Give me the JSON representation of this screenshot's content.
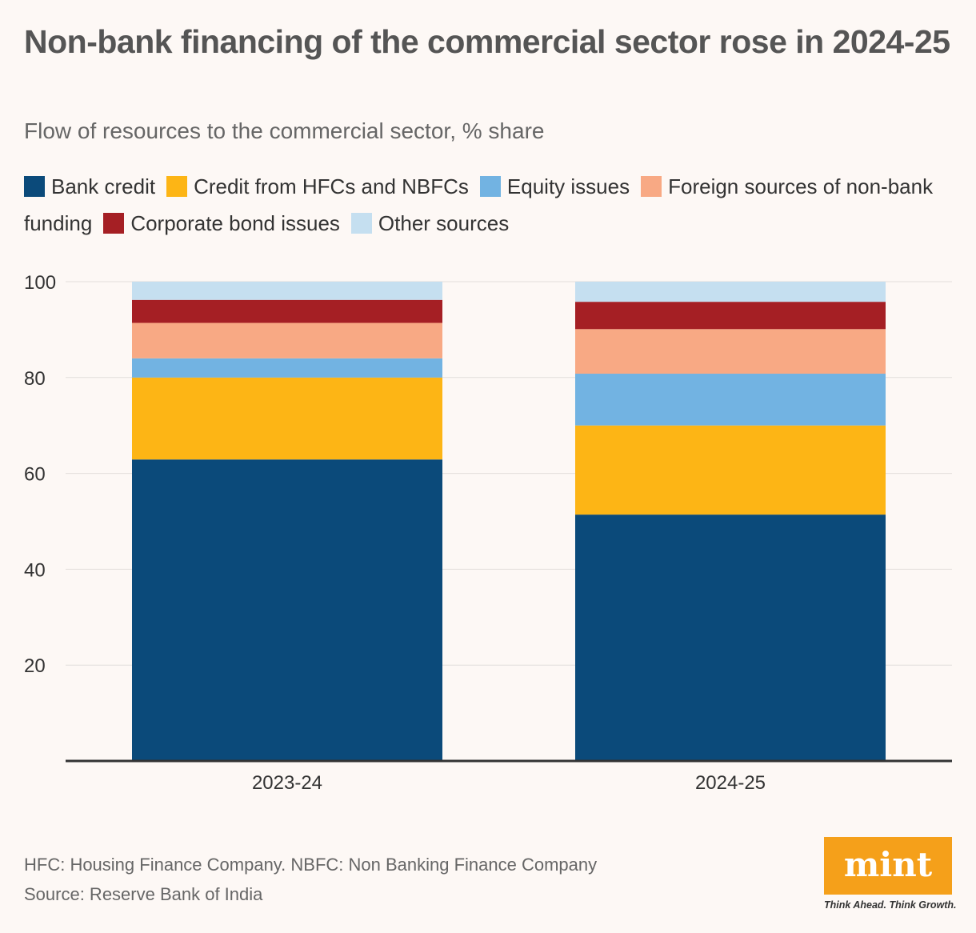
{
  "header": {
    "title": "Non-bank financing of the commercial sector rose in 2024-25",
    "subtitle": "Flow of resources to the commercial sector, % share"
  },
  "footer": {
    "note": "HFC: Housing Finance Company. NBFC: Non Banking Finance Company",
    "source": "Source: Reserve Bank of India"
  },
  "brand": {
    "logo_text": "mint",
    "tagline": "Think Ahead. Think Growth.",
    "logo_color": "#f5a01a"
  },
  "chart_data": {
    "type": "bar",
    "stacked": true,
    "title": "Non-bank financing of the commercial sector rose in 2024-25",
    "subtitle": "Flow of resources to the commercial sector, % share",
    "categories": [
      "2023-24",
      "2024-25"
    ],
    "series": [
      {
        "name": "Bank credit",
        "color": "#0b4a7a",
        "values": [
          62.9,
          51.4
        ]
      },
      {
        "name": "Credit from HFCs and NBFCs",
        "color": "#fdb515",
        "values": [
          17.1,
          18.6
        ]
      },
      {
        "name": "Equity issues",
        "color": "#72b3e2",
        "values": [
          4.0,
          10.8
        ]
      },
      {
        "name": "Foreign sources of non-bank funding",
        "color": "#f8a984",
        "values": [
          7.4,
          9.3
        ]
      },
      {
        "name": "Corporate bond issues",
        "color": "#a51f24",
        "values": [
          4.8,
          5.7
        ]
      },
      {
        "name": "Other sources",
        "color": "#c5dff0",
        "values": [
          3.8,
          4.2
        ]
      }
    ],
    "yticks": [
      20,
      40,
      60,
      80,
      100
    ],
    "ylim": [
      0,
      100
    ],
    "grid": true,
    "legend_position": "top"
  }
}
